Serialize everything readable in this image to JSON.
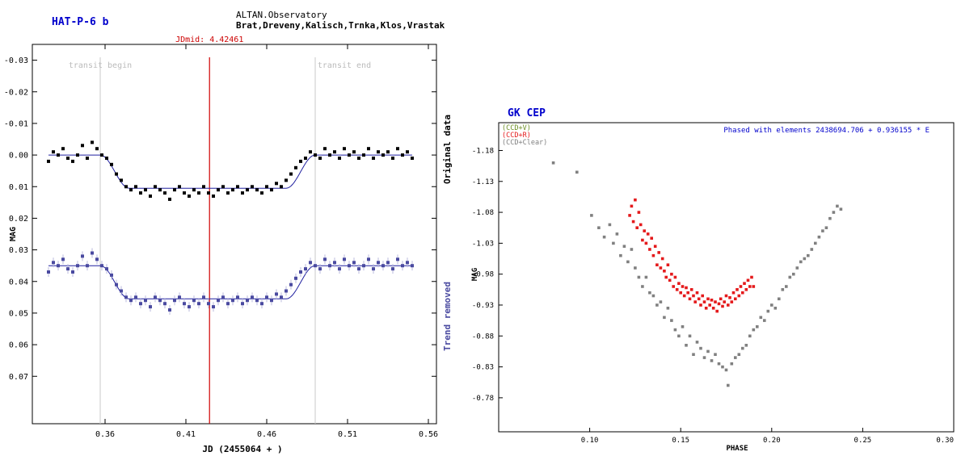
{
  "charts": [
    {
      "type": "scatter",
      "title": "HAT-P-6 b",
      "observatory": "ALTAN.Observatory",
      "observers": "Brat,Dreveny,Kalisch,Trnka,Klos,Vrastak",
      "xlabel": "JD (2455064 + )",
      "ylabel": "MAG",
      "xlim": [
        0.315,
        0.565
      ],
      "ylim": [
        -0.035,
        0.085
      ],
      "y_inverted": true,
      "xticks": [
        "0.36",
        "0.41",
        "0.46",
        "0.51",
        "0.56"
      ],
      "xtick_values": [
        0.36,
        0.41,
        0.46,
        0.51,
        0.56
      ],
      "yticks": [
        "-0.03",
        "-0.02",
        "-0.01",
        "0.00",
        "0.01",
        "0.02",
        "0.03",
        "0.04",
        "0.05",
        "0.06",
        "0.07"
      ],
      "ytick_values": [
        -0.03,
        -0.02,
        -0.01,
        0.0,
        0.01,
        0.02,
        0.03,
        0.04,
        0.05,
        0.06,
        0.07
      ],
      "grid": false,
      "jdmid_label": "JDmid: 4.42461",
      "jdmid": 0.42461,
      "transit_begin_label": "transit begin",
      "transit_begin": 0.357,
      "transit_end_label": "transit end",
      "transit_end": 0.49,
      "right_label_original": "Original data",
      "right_label_trend": "Trend removed",
      "model": {
        "depth": 0.0105,
        "ingress_start": 0.357,
        "ingress_end": 0.375,
        "egress_start": 0.472,
        "egress_end": 0.49,
        "baseline_original": 0.0,
        "baseline_trend": 0.035
      },
      "series": [
        {
          "name": "Original data",
          "color": "#000000",
          "x": [
            0.325,
            0.328,
            0.331,
            0.334,
            0.337,
            0.34,
            0.343,
            0.346,
            0.349,
            0.352,
            0.355,
            0.358,
            0.361,
            0.364,
            0.367,
            0.37,
            0.373,
            0.376,
            0.379,
            0.382,
            0.385,
            0.388,
            0.391,
            0.394,
            0.397,
            0.4,
            0.403,
            0.406,
            0.409,
            0.412,
            0.415,
            0.418,
            0.421,
            0.424,
            0.427,
            0.43,
            0.433,
            0.436,
            0.439,
            0.442,
            0.445,
            0.448,
            0.451,
            0.454,
            0.457,
            0.46,
            0.463,
            0.466,
            0.469,
            0.472,
            0.475,
            0.478,
            0.481,
            0.484,
            0.487,
            0.49,
            0.493,
            0.496,
            0.499,
            0.502,
            0.505,
            0.508,
            0.511,
            0.514,
            0.517,
            0.52,
            0.523,
            0.526,
            0.529,
            0.532,
            0.535,
            0.538,
            0.541,
            0.544,
            0.547,
            0.55
          ],
          "y": [
            0.002,
            -0.001,
            0.0,
            -0.002,
            0.001,
            0.002,
            0.0,
            -0.003,
            0.001,
            -0.004,
            -0.002,
            0.0,
            0.001,
            0.003,
            0.006,
            0.008,
            0.01,
            0.011,
            0.01,
            0.012,
            0.011,
            0.013,
            0.01,
            0.011,
            0.012,
            0.014,
            0.011,
            0.01,
            0.012,
            0.013,
            0.011,
            0.012,
            0.01,
            0.012,
            0.013,
            0.011,
            0.01,
            0.012,
            0.011,
            0.01,
            0.012,
            0.011,
            0.01,
            0.011,
            0.012,
            0.01,
            0.011,
            0.009,
            0.01,
            0.008,
            0.006,
            0.004,
            0.002,
            0.001,
            -0.001,
            0.0,
            0.001,
            -0.002,
            0.0,
            -0.001,
            0.001,
            -0.002,
            0.0,
            -0.001,
            0.001,
            0.0,
            -0.002,
            0.001,
            -0.001,
            0.0,
            -0.001,
            0.001,
            -0.002,
            0.0,
            -0.001,
            0.001
          ]
        },
        {
          "name": "Trend removed",
          "color": "#4a4aa0",
          "x": [
            0.325,
            0.328,
            0.331,
            0.334,
            0.337,
            0.34,
            0.343,
            0.346,
            0.349,
            0.352,
            0.355,
            0.358,
            0.361,
            0.364,
            0.367,
            0.37,
            0.373,
            0.376,
            0.379,
            0.382,
            0.385,
            0.388,
            0.391,
            0.394,
            0.397,
            0.4,
            0.403,
            0.406,
            0.409,
            0.412,
            0.415,
            0.418,
            0.421,
            0.424,
            0.427,
            0.43,
            0.433,
            0.436,
            0.439,
            0.442,
            0.445,
            0.448,
            0.451,
            0.454,
            0.457,
            0.46,
            0.463,
            0.466,
            0.469,
            0.472,
            0.475,
            0.478,
            0.481,
            0.484,
            0.487,
            0.49,
            0.493,
            0.496,
            0.499,
            0.502,
            0.505,
            0.508,
            0.511,
            0.514,
            0.517,
            0.52,
            0.523,
            0.526,
            0.529,
            0.532,
            0.535,
            0.538,
            0.541,
            0.544,
            0.547,
            0.55
          ],
          "y": [
            0.037,
            0.034,
            0.035,
            0.033,
            0.036,
            0.037,
            0.035,
            0.032,
            0.035,
            0.031,
            0.033,
            0.035,
            0.036,
            0.038,
            0.041,
            0.043,
            0.045,
            0.046,
            0.045,
            0.047,
            0.046,
            0.048,
            0.045,
            0.046,
            0.047,
            0.049,
            0.046,
            0.045,
            0.047,
            0.048,
            0.046,
            0.047,
            0.045,
            0.047,
            0.048,
            0.046,
            0.045,
            0.047,
            0.046,
            0.045,
            0.047,
            0.046,
            0.045,
            0.046,
            0.047,
            0.045,
            0.046,
            0.044,
            0.045,
            0.043,
            0.041,
            0.039,
            0.037,
            0.036,
            0.034,
            0.035,
            0.036,
            0.033,
            0.035,
            0.034,
            0.036,
            0.033,
            0.035,
            0.034,
            0.036,
            0.035,
            0.033,
            0.036,
            0.034,
            0.035,
            0.034,
            0.036,
            0.033,
            0.035,
            0.034,
            0.035
          ]
        }
      ]
    },
    {
      "type": "scatter",
      "title": "GK CEP",
      "annotation": "Phased with elements 2438694.706 + 0.936155 * E",
      "xlabel": "PHASE",
      "ylabel": "MAG",
      "xlim": [
        0.05,
        0.3
      ],
      "ylim": [
        -1.225,
        -0.725
      ],
      "y_inverted": false,
      "xticks": [
        "0.10",
        "0.15",
        "0.20",
        "0.25",
        "0.30"
      ],
      "xtick_values": [
        0.1,
        0.15,
        0.2,
        0.25,
        0.3
      ],
      "yticks": [
        "-1.18",
        "-1.13",
        "-1.08",
        "-1.03",
        "-0.98",
        "-0.93",
        "-0.88",
        "-0.83",
        "-0.78"
      ],
      "ytick_values": [
        -1.18,
        -1.13,
        -1.08,
        -1.03,
        -0.98,
        -0.93,
        -0.88,
        -0.83,
        -0.78
      ],
      "grid": false,
      "legend_position": "top-left",
      "series": [
        {
          "name": "(CCD+V)",
          "color": "#6b8e23",
          "x": [],
          "y": []
        },
        {
          "name": "(CCD+R)",
          "color": "#e41a1c",
          "x": [
            0.122,
            0.123,
            0.124,
            0.125,
            0.126,
            0.127,
            0.128,
            0.129,
            0.13,
            0.131,
            0.132,
            0.133,
            0.134,
            0.135,
            0.136,
            0.137,
            0.138,
            0.139,
            0.14,
            0.141,
            0.142,
            0.143,
            0.144,
            0.145,
            0.146,
            0.147,
            0.148,
            0.149,
            0.15,
            0.151,
            0.152,
            0.153,
            0.154,
            0.155,
            0.156,
            0.157,
            0.158,
            0.159,
            0.16,
            0.161,
            0.162,
            0.163,
            0.164,
            0.165,
            0.166,
            0.167,
            0.168,
            0.169,
            0.17,
            0.171,
            0.172,
            0.173,
            0.174,
            0.175,
            0.176,
            0.177,
            0.178,
            0.179,
            0.18,
            0.181,
            0.182,
            0.183,
            0.184,
            0.185,
            0.186,
            0.187,
            0.188,
            0.189,
            0.19
          ],
          "y": [
            -1.075,
            -1.09,
            -1.065,
            -1.1,
            -1.055,
            -1.08,
            -1.06,
            -1.035,
            -1.05,
            -1.03,
            -1.045,
            -1.02,
            -1.038,
            -1.01,
            -1.025,
            -0.995,
            -1.015,
            -0.99,
            -1.005,
            -0.985,
            -0.975,
            -0.995,
            -0.97,
            -0.98,
            -0.96,
            -0.975,
            -0.955,
            -0.965,
            -0.95,
            -0.96,
            -0.945,
            -0.958,
            -0.95,
            -0.94,
            -0.955,
            -0.945,
            -0.935,
            -0.95,
            -0.94,
            -0.93,
            -0.945,
            -0.935,
            -0.925,
            -0.94,
            -0.93,
            -0.938,
            -0.925,
            -0.935,
            -0.92,
            -0.932,
            -0.94,
            -0.928,
            -0.935,
            -0.945,
            -0.93,
            -0.942,
            -0.935,
            -0.95,
            -0.94,
            -0.955,
            -0.945,
            -0.96,
            -0.95,
            -0.965,
            -0.955,
            -0.97,
            -0.96,
            -0.975,
            -0.96
          ]
        },
        {
          "name": "(CCD+Clear)",
          "color": "#808080",
          "x": [
            0.08,
            0.093,
            0.101,
            0.105,
            0.108,
            0.111,
            0.113,
            0.115,
            0.117,
            0.119,
            0.121,
            0.123,
            0.125,
            0.127,
            0.129,
            0.131,
            0.133,
            0.135,
            0.137,
            0.139,
            0.141,
            0.143,
            0.145,
            0.147,
            0.149,
            0.151,
            0.153,
            0.155,
            0.157,
            0.159,
            0.161,
            0.163,
            0.165,
            0.167,
            0.169,
            0.171,
            0.173,
            0.175,
            0.176,
            0.178,
            0.18,
            0.182,
            0.184,
            0.186,
            0.188,
            0.19,
            0.192,
            0.194,
            0.196,
            0.198,
            0.2,
            0.202,
            0.204,
            0.206,
            0.208,
            0.21,
            0.212,
            0.214,
            0.216,
            0.218,
            0.22,
            0.222,
            0.224,
            0.226,
            0.228,
            0.23,
            0.232,
            0.234,
            0.236,
            0.238
          ],
          "y": [
            -1.16,
            -1.145,
            -1.075,
            -1.055,
            -1.04,
            -1.06,
            -1.03,
            -1.045,
            -1.01,
            -1.025,
            -1.0,
            -1.02,
            -0.99,
            -0.975,
            -0.96,
            -0.975,
            -0.95,
            -0.945,
            -0.93,
            -0.935,
            -0.91,
            -0.925,
            -0.905,
            -0.89,
            -0.88,
            -0.895,
            -0.865,
            -0.88,
            -0.85,
            -0.87,
            -0.86,
            -0.845,
            -0.855,
            -0.84,
            -0.85,
            -0.835,
            -0.83,
            -0.825,
            -0.8,
            -0.835,
            -0.845,
            -0.85,
            -0.86,
            -0.865,
            -0.88,
            -0.89,
            -0.895,
            -0.91,
            -0.905,
            -0.92,
            -0.93,
            -0.925,
            -0.94,
            -0.955,
            -0.96,
            -0.975,
            -0.98,
            -0.99,
            -1.0,
            -1.005,
            -1.01,
            -1.02,
            -1.03,
            -1.04,
            -1.05,
            -1.055,
            -1.07,
            -1.08,
            -1.09,
            -1.085
          ]
        }
      ]
    }
  ]
}
